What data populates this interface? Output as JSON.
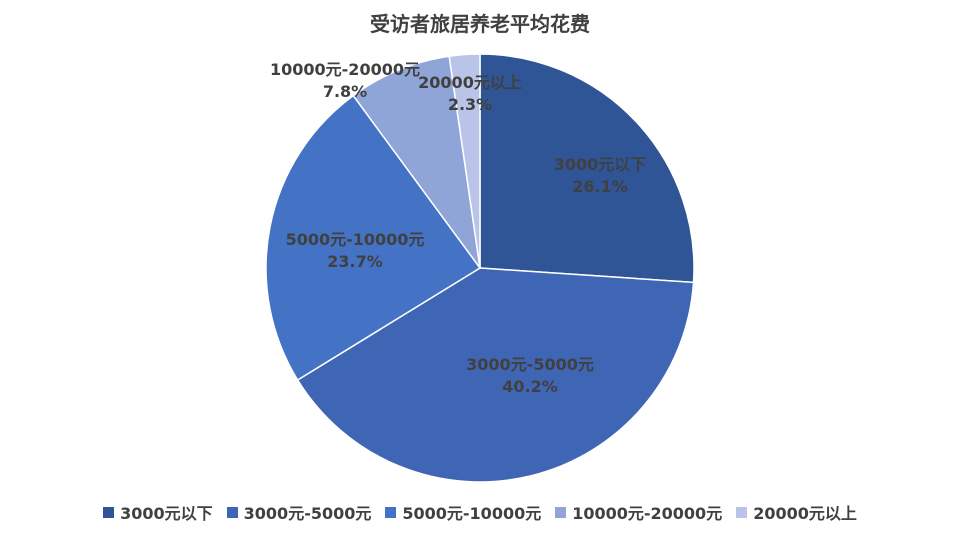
{
  "chart_data": {
    "type": "pie",
    "title": "受访者旅居养老平均花费",
    "categories": [
      "3000元以下",
      "3000元-5000元",
      "5000元-10000元",
      "10000元-20000元",
      "20000元以上"
    ],
    "values": [
      26.1,
      40.2,
      23.7,
      7.8,
      2.3
    ],
    "value_labels": [
      "26.1%",
      "40.2%",
      "23.7%",
      "7.8%",
      "2.3%"
    ],
    "colors": [
      "#2f5597",
      "#3e66b5",
      "#4472c4",
      "#8fa5d8",
      "#b9c4e8"
    ],
    "start_angle": "12 o'clock, clockwise",
    "legend_position": "bottom"
  }
}
